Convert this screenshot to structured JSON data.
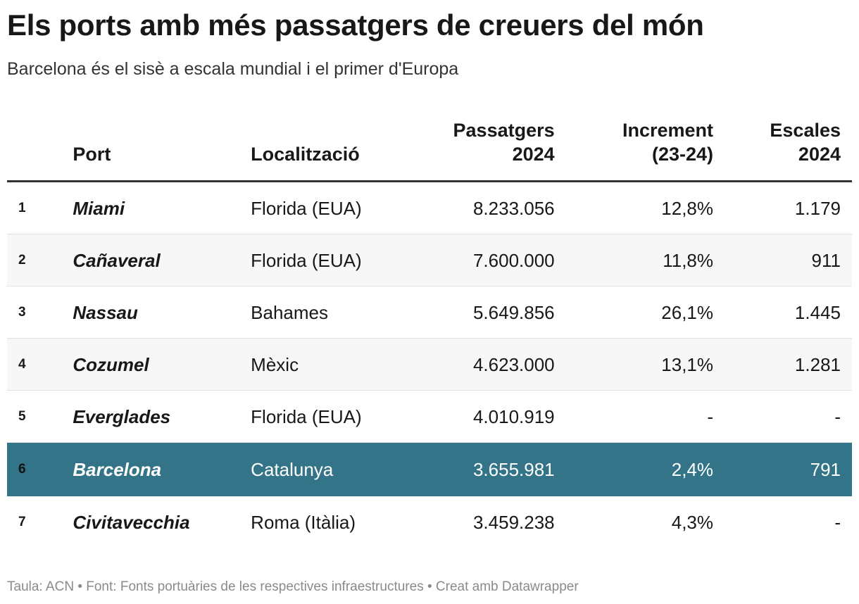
{
  "title": "Els ports amb més passatgers de creuers del món",
  "subtitle": "Barcelona és el sisè a escala mundial i el primer d'Europa",
  "footer": "Taula: ACN • Font: Fonts portuàries de les respectives infraestructures • Creat amb Datawrapper",
  "colors": {
    "highlight_row": "#337489",
    "highlight_text": "#ffffff",
    "alt_row": "#f7f7f7",
    "header_rule": "#333333"
  },
  "chart_data": {
    "type": "table",
    "columns": [
      {
        "key": "rank",
        "label": "",
        "align": "left"
      },
      {
        "key": "port",
        "label": "Port",
        "align": "left"
      },
      {
        "key": "location",
        "label": "Localització",
        "align": "left"
      },
      {
        "key": "passengers",
        "label": "Passatgers 2024",
        "align": "right"
      },
      {
        "key": "increase",
        "label": "Increment (23-24)",
        "align": "right"
      },
      {
        "key": "calls",
        "label": "Escales 2024",
        "align": "right"
      }
    ],
    "rows": [
      {
        "rank": "1",
        "port": "Miami",
        "location": "Florida (EUA)",
        "passengers": "8.233.056",
        "increase": "12,8%",
        "calls": "1.179"
      },
      {
        "rank": "2",
        "port": "Cañaveral",
        "location": "Florida (EUA)",
        "passengers": "7.600.000",
        "increase": "11,8%",
        "calls": "911"
      },
      {
        "rank": "3",
        "port": "Nassau",
        "location": "Bahames",
        "passengers": "5.649.856",
        "increase": "26,1%",
        "calls": "1.445"
      },
      {
        "rank": "4",
        "port": "Cozumel",
        "location": "Mèxic",
        "passengers": "4.623.000",
        "increase": "13,1%",
        "calls": "1.281"
      },
      {
        "rank": "5",
        "port": "Everglades",
        "location": "Florida (EUA)",
        "passengers": "4.010.919",
        "increase": "-",
        "calls": "-"
      },
      {
        "rank": "6",
        "port": "Barcelona",
        "location": "Catalunya",
        "passengers": "3.655.981",
        "increase": "2,4%",
        "calls": "791",
        "highlight": true
      },
      {
        "rank": "7",
        "port": "Civitavecchia",
        "location": "Roma (Itàlia)",
        "passengers": "3.459.238",
        "increase": "4,3%",
        "calls": "-"
      }
    ]
  }
}
